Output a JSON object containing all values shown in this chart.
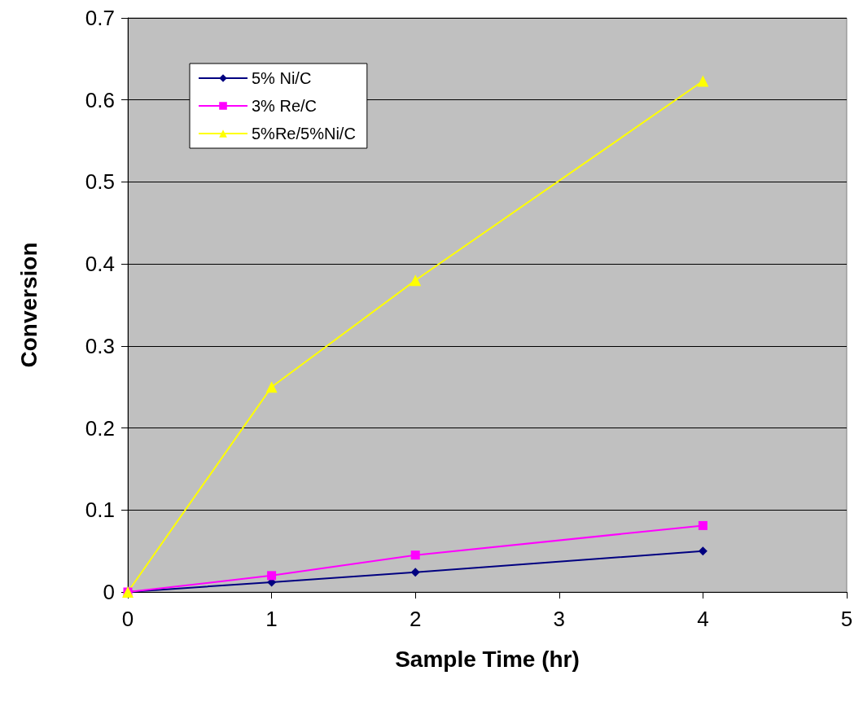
{
  "chart_data": {
    "type": "line",
    "xlabel": "Sample Time (hr)",
    "ylabel": "Conversion",
    "x": [
      0,
      1,
      2,
      4
    ],
    "series": [
      {
        "name": "5% Ni/C",
        "color": "#000080",
        "marker": "diamond",
        "values": [
          0,
          0.012,
          0.024,
          0.05
        ]
      },
      {
        "name": "3% Re/C",
        "color": "#ff00ff",
        "marker": "square",
        "values": [
          0,
          0.02,
          0.045,
          0.081
        ]
      },
      {
        "name": "5%Re/5%Ni/C",
        "color": "#ffff00",
        "marker": "triangle",
        "values": [
          0,
          0.25,
          0.38,
          0.623
        ]
      }
    ],
    "xlim": [
      0,
      5
    ],
    "xticks": [
      0,
      1,
      2,
      3,
      4,
      5
    ],
    "ylim": [
      0,
      0.7
    ],
    "yticks": [
      0,
      0.1,
      0.2,
      0.3,
      0.4,
      0.5,
      0.6,
      0.7
    ],
    "grid": "y",
    "legend": "top left",
    "line_style": "solid"
  }
}
